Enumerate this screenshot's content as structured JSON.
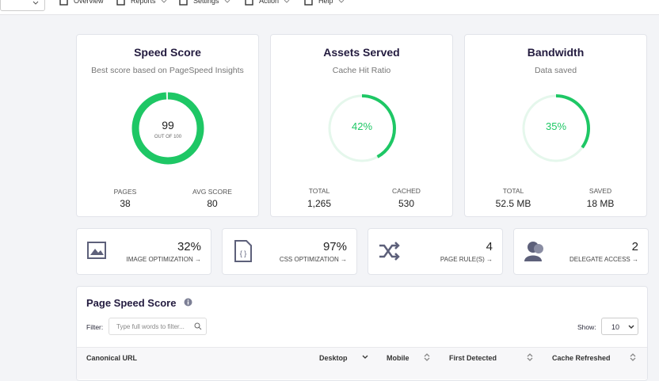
{
  "nav": {
    "items": [
      "Overview",
      "Reports",
      "Settings",
      "Action",
      "Help"
    ]
  },
  "cards": [
    {
      "title": "Speed Score",
      "subtitle": "Best score based on PageSpeed Insights",
      "gauge": {
        "value": 99,
        "label": "99"
      },
      "gauge_caption": "OUT OF 100",
      "stats": [
        {
          "label": "PAGES",
          "value": "38"
        },
        {
          "label": "AVG SCORE",
          "value": "80"
        }
      ]
    },
    {
      "title": "Assets Served",
      "subtitle": "Cache Hit Ratio",
      "gauge": {
        "value": 42,
        "label": "42%"
      },
      "stats": [
        {
          "label": "TOTAL",
          "value": "1,265"
        },
        {
          "label": "CACHED",
          "value": "530"
        }
      ]
    },
    {
      "title": "Bandwidth",
      "subtitle": "Data saved",
      "gauge": {
        "value": 35,
        "label": "35%"
      },
      "stats": [
        {
          "label": "TOTAL",
          "value": "52.5 MB"
        },
        {
          "label": "SAVED",
          "value": "18 MB"
        }
      ]
    }
  ],
  "tiles": [
    {
      "value": "32%",
      "label": "IMAGE OPTIMIZATION →"
    },
    {
      "value": "97%",
      "label": "CSS OPTIMIZATION →"
    },
    {
      "value": "4",
      "label": "PAGE RULE(S) →"
    },
    {
      "value": "2",
      "label": "DELEGATE ACCESS →"
    }
  ],
  "panel": {
    "title": "Page Speed Score",
    "filter_label": "Filter:",
    "filter_placeholder": "Type full words to filter...",
    "show_label": "Show:",
    "show_value": "10",
    "columns": [
      "Canonical URL",
      "Desktop",
      "Mobile",
      "First Detected",
      "Cache Refreshed"
    ]
  }
}
